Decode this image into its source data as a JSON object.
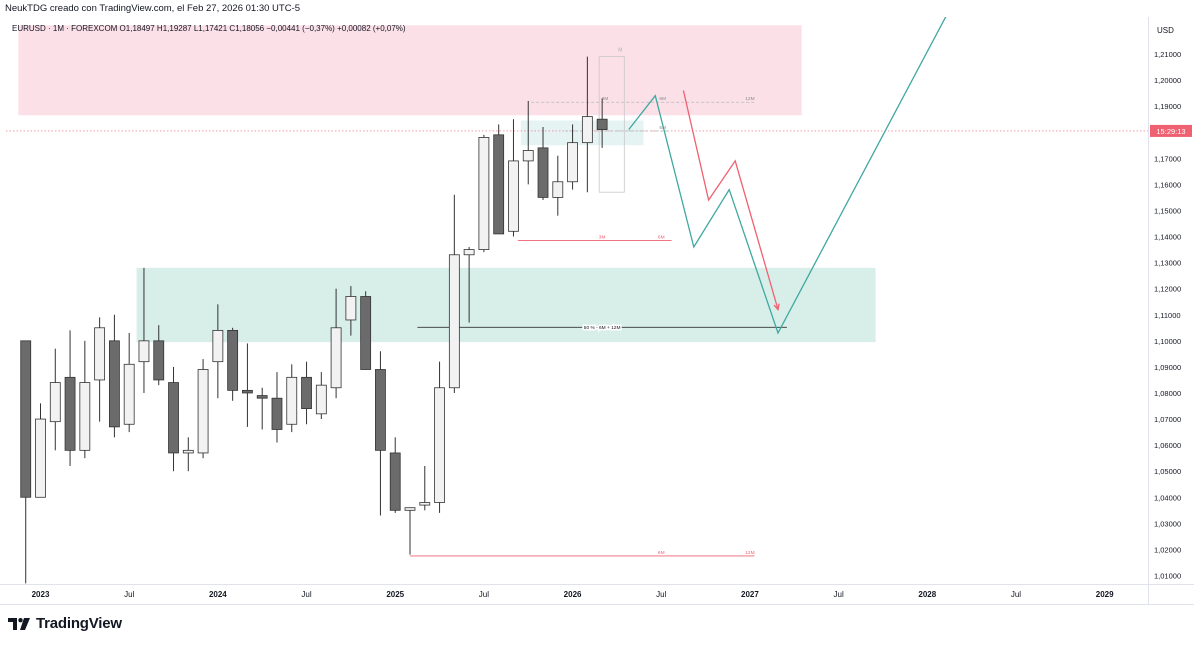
{
  "header": {
    "caption": "NeukTDG creado con TradingView.com, el Feb 27, 2026 01:30 UTC-5"
  },
  "brand": {
    "name": "TradingView",
    "logo_icon": "tradingview-logo-icon"
  },
  "colors": {
    "bull_body": "#f2f2f2",
    "bear_body": "#6b6b6b",
    "wick": "#333333",
    "supply_zone": "#fbe0e8",
    "demand_zone": "#d7eee9",
    "projection_teal": "#3fa8a0",
    "projection_red": "#ef6070",
    "last_price_bg": "#ef6070"
  },
  "chart_data": {
    "type": "candlestick",
    "symbol_line": "EURUSD · 1M · FOREXCOM  O1,18497  H1,19287  L1,17421  C1,18056  −0,00441 (−0,37%)  +0,00082 (+0,07%)",
    "currency": "USD",
    "interval": "1M",
    "ylim": [
      1.005,
      1.222
    ],
    "yticks": [
      "1,01000",
      "1,02000",
      "1,03000",
      "1,04000",
      "1,05000",
      "1,06000",
      "1,07000",
      "1,08000",
      "1,09000",
      "1,10000",
      "1,11000",
      "1,12000",
      "1,13000",
      "1,14000",
      "1,15000",
      "1,16000",
      "1,17000",
      "1,18000",
      "1,19000",
      "1,20000",
      "1,21000"
    ],
    "xticks": [
      {
        "label": "2023",
        "month": 0,
        "bold": true
      },
      {
        "label": "Jul",
        "month": 6,
        "bold": false
      },
      {
        "label": "2024",
        "month": 12,
        "bold": true
      },
      {
        "label": "Jul",
        "month": 18,
        "bold": false
      },
      {
        "label": "2025",
        "month": 24,
        "bold": true
      },
      {
        "label": "Jul",
        "month": 30,
        "bold": false
      },
      {
        "label": "2026",
        "month": 36,
        "bold": true
      },
      {
        "label": "Jul",
        "month": 42,
        "bold": false
      },
      {
        "label": "2027",
        "month": 48,
        "bold": true
      },
      {
        "label": "Jul",
        "month": 54,
        "bold": false
      },
      {
        "label": "2028",
        "month": 60,
        "bold": true
      },
      {
        "label": "Jul",
        "month": 66,
        "bold": false
      },
      {
        "label": "2029",
        "month": 72,
        "bold": true
      }
    ],
    "candles": [
      {
        "m": -1,
        "o": 1.1,
        "h": 1.1,
        "l": 1.007,
        "c": 1.04
      },
      {
        "m": 0,
        "o": 1.04,
        "h": 1.076,
        "l": 1.041,
        "c": 1.07
      },
      {
        "m": 1,
        "o": 1.069,
        "h": 1.097,
        "l": 1.058,
        "c": 1.084
      },
      {
        "m": 2,
        "o": 1.086,
        "h": 1.104,
        "l": 1.052,
        "c": 1.058
      },
      {
        "m": 3,
        "o": 1.058,
        "h": 1.1,
        "l": 1.055,
        "c": 1.084
      },
      {
        "m": 4,
        "o": 1.085,
        "h": 1.109,
        "l": 1.069,
        "c": 1.105
      },
      {
        "m": 5,
        "o": 1.1,
        "h": 1.11,
        "l": 1.063,
        "c": 1.067
      },
      {
        "m": 6,
        "o": 1.068,
        "h": 1.103,
        "l": 1.065,
        "c": 1.091
      },
      {
        "m": 7,
        "o": 1.092,
        "h": 1.128,
        "l": 1.08,
        "c": 1.1
      },
      {
        "m": 8,
        "o": 1.1,
        "h": 1.106,
        "l": 1.083,
        "c": 1.085
      },
      {
        "m": 9,
        "o": 1.084,
        "h": 1.09,
        "l": 1.05,
        "c": 1.057
      },
      {
        "m": 10,
        "o": 1.057,
        "h": 1.063,
        "l": 1.05,
        "c": 1.058
      },
      {
        "m": 11,
        "o": 1.057,
        "h": 1.093,
        "l": 1.055,
        "c": 1.089
      },
      {
        "m": 12,
        "o": 1.092,
        "h": 1.114,
        "l": 1.078,
        "c": 1.104
      },
      {
        "m": 13,
        "o": 1.104,
        "h": 1.105,
        "l": 1.077,
        "c": 1.081
      },
      {
        "m": 14,
        "o": 1.081,
        "h": 1.099,
        "l": 1.067,
        "c": 1.08
      },
      {
        "m": 15,
        "o": 1.079,
        "h": 1.082,
        "l": 1.066,
        "c": 1.078
      },
      {
        "m": 16,
        "o": 1.078,
        "h": 1.088,
        "l": 1.061,
        "c": 1.066
      },
      {
        "m": 17,
        "o": 1.068,
        "h": 1.091,
        "l": 1.065,
        "c": 1.086
      },
      {
        "m": 18,
        "o": 1.086,
        "h": 1.092,
        "l": 1.068,
        "c": 1.074
      },
      {
        "m": 19,
        "o": 1.072,
        "h": 1.088,
        "l": 1.07,
        "c": 1.083
      },
      {
        "m": 20,
        "o": 1.082,
        "h": 1.12,
        "l": 1.078,
        "c": 1.105
      },
      {
        "m": 21,
        "o": 1.108,
        "h": 1.121,
        "l": 1.102,
        "c": 1.117
      },
      {
        "m": 22,
        "o": 1.117,
        "h": 1.119,
        "l": 1.089,
        "c": 1.089
      },
      {
        "m": 23,
        "o": 1.089,
        "h": 1.096,
        "l": 1.033,
        "c": 1.058
      },
      {
        "m": 24,
        "o": 1.057,
        "h": 1.063,
        "l": 1.034,
        "c": 1.035
      },
      {
        "m": 25,
        "o": 1.035,
        "h": 1.036,
        "l": 1.018,
        "c": 1.036
      },
      {
        "m": 26,
        "o": 1.037,
        "h": 1.052,
        "l": 1.035,
        "c": 1.038
      },
      {
        "m": 27,
        "o": 1.038,
        "h": 1.092,
        "l": 1.034,
        "c": 1.082
      },
      {
        "m": 28,
        "o": 1.082,
        "h": 1.156,
        "l": 1.08,
        "c": 1.133
      },
      {
        "m": 29,
        "o": 1.133,
        "h": 1.136,
        "l": 1.107,
        "c": 1.135
      },
      {
        "m": 30,
        "o": 1.135,
        "h": 1.179,
        "l": 1.134,
        "c": 1.178
      },
      {
        "m": 31,
        "o": 1.179,
        "h": 1.183,
        "l": 1.141,
        "c": 1.141
      },
      {
        "m": 32,
        "o": 1.142,
        "h": 1.185,
        "l": 1.14,
        "c": 1.169
      },
      {
        "m": 33,
        "o": 1.169,
        "h": 1.192,
        "l": 1.16,
        "c": 1.173
      },
      {
        "m": 34,
        "o": 1.174,
        "h": 1.182,
        "l": 1.154,
        "c": 1.155
      },
      {
        "m": 35,
        "o": 1.155,
        "h": 1.171,
        "l": 1.148,
        "c": 1.161
      },
      {
        "m": 36,
        "o": 1.161,
        "h": 1.183,
        "l": 1.158,
        "c": 1.176
      },
      {
        "m": 37,
        "o": 1.176,
        "h": 1.209,
        "l": 1.157,
        "c": 1.186
      },
      {
        "m": 38,
        "o": 1.185,
        "h": 1.193,
        "l": 1.174,
        "c": 1.181
      }
    ],
    "last_price": {
      "value": 1.1805,
      "countdown": "15:29:13"
    },
    "zones": [
      {
        "kind": "supply",
        "from_month": -1.5,
        "to_month": 51.5,
        "top": 1.221,
        "bottom": 1.1865
      },
      {
        "kind": "demand",
        "from_month": 6.5,
        "to_month": 56.5,
        "top": 1.128,
        "bottom": 1.0995
      },
      {
        "kind": "current",
        "from_month": 32.5,
        "to_month": 40.8,
        "top": 1.1845,
        "bottom": 1.175
      }
    ],
    "levels": [
      {
        "price": 1.1052,
        "from_month": 25.5,
        "to_month": 50.5,
        "color": "#333333",
        "label": "50 % - 6M + 12M",
        "label_month": 38
      }
    ],
    "red_levels": [
      {
        "price": 1.1385,
        "from_month": 32.3,
        "to_month": 42.7,
        "labels": [
          {
            "text": "3M",
            "month": 38
          },
          {
            "text": "6M",
            "month": 42
          }
        ]
      },
      {
        "price": 1.0175,
        "from_month": 25.0,
        "to_month": 48.3,
        "labels": [
          {
            "text": "6M",
            "month": 42
          },
          {
            "text": "12M",
            "month": 48
          }
        ]
      }
    ],
    "gray_levels": [
      {
        "price": 1.1915,
        "from_month": 33.2,
        "to_month": 48.3,
        "labels": [
          {
            "text": "3M",
            "month": 38.2
          },
          {
            "text": "6M",
            "month": 42.1
          },
          {
            "text": "12M",
            "month": 48
          }
        ]
      },
      {
        "price": 1.1805,
        "from_month": 35.5,
        "to_month": 42.6,
        "labels": [
          {
            "text": "6M",
            "month": 42.1
          }
        ]
      }
    ],
    "range_box": {
      "from_month": 37.8,
      "to_month": 39.5,
      "top": 1.209,
      "bottom": 1.157,
      "label": "M"
    },
    "projections": [
      {
        "name": "",
        "color": "#3fa8a0",
        "points": [
          [
            39.8,
            1.181
          ],
          [
            41.6,
            1.194
          ],
          [
            44.2,
            1.136
          ],
          [
            46.6,
            1.158
          ],
          [
            49.9,
            1.103
          ],
          [
            61.5,
            1.227
          ]
        ]
      },
      {
        "name": "",
        "color": "#ef6070",
        "points": [
          [
            43.5,
            1.196
          ],
          [
            45.2,
            1.154
          ],
          [
            47.0,
            1.169
          ],
          [
            49.9,
            1.112
          ]
        ]
      }
    ]
  }
}
